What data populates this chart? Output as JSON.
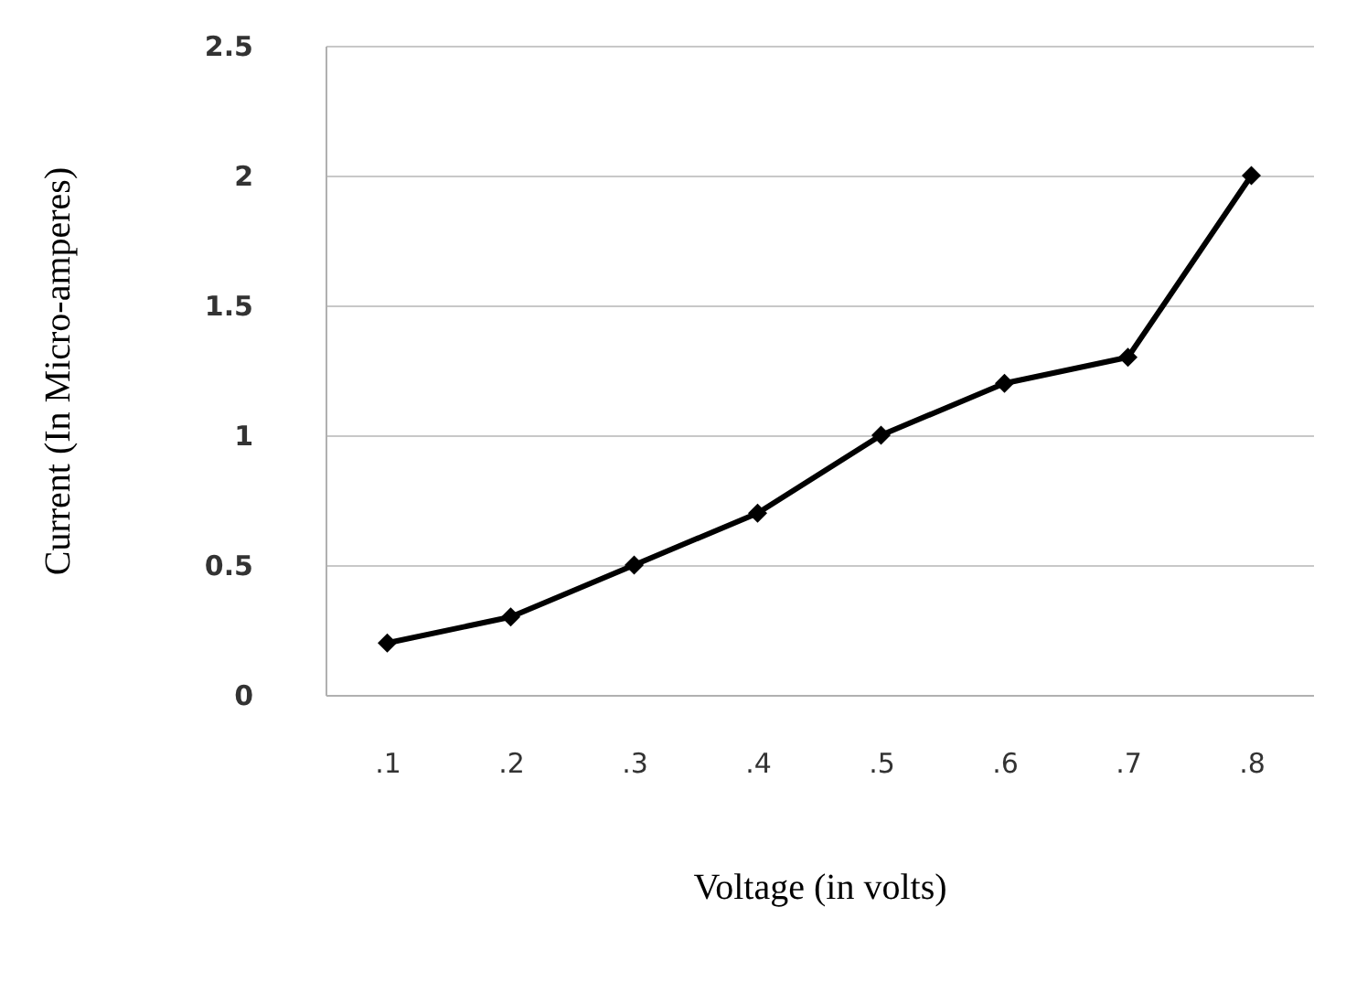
{
  "chart_data": {
    "type": "line",
    "xlabel": "Voltage (in volts)",
    "ylabel": "Current (In Micro-amperes)",
    "categories": [
      ".1",
      ".2",
      ".3",
      ".4",
      ".5",
      ".6",
      ".7",
      ".8"
    ],
    "values": [
      0.2,
      0.3,
      0.5,
      0.7,
      1.0,
      1.2,
      1.3,
      2.0
    ],
    "color": "#000000",
    "ylim": [
      0,
      2.5
    ],
    "yticks": [
      0,
      0.5,
      1,
      1.5,
      2,
      2.5
    ],
    "grid": "y",
    "marker": "diamond"
  }
}
